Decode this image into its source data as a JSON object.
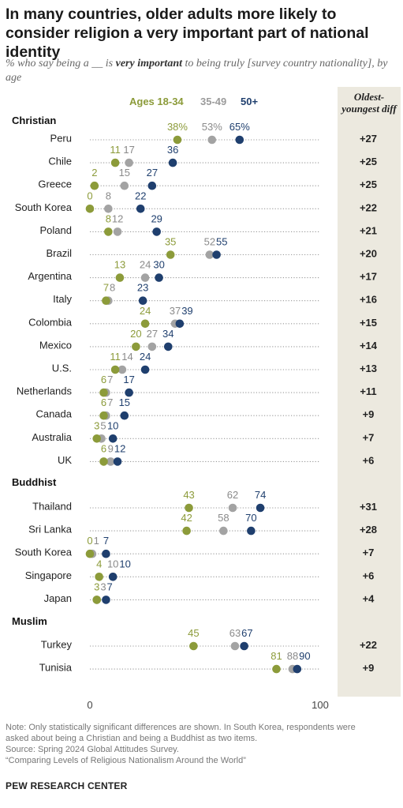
{
  "title": "In many countries, older adults more likely to consider religion a very important part of national identity",
  "subtitle_pre": "% who say being a __ is ",
  "subtitle_bold": "very important",
  "subtitle_post": " to being truly [survey country nationality], by age",
  "diff_header": "Oldest-youngest diff",
  "legend": [
    {
      "label": "Ages 18-34",
      "color": "#8c9b3a"
    },
    {
      "label": "35-49",
      "color": "#9b9b9b"
    },
    {
      "label": "50+",
      "color": "#1f3f6e"
    }
  ],
  "colors": {
    "young": "#8c9b3a",
    "mid": "#a3a3a3",
    "old": "#1f3f6e",
    "mid_text": "#8a8a8a",
    "band": "#ece9df"
  },
  "chart_data": {
    "type": "scatter",
    "xlim": [
      0,
      100
    ],
    "xticks": [
      "0",
      "100"
    ],
    "series": [
      {
        "name": "Ages 18-34"
      },
      {
        "name": "35-49"
      },
      {
        "name": "50+"
      }
    ],
    "groups": [
      {
        "name": "Christian",
        "rows": [
          {
            "label": "Peru",
            "values": [
              38,
              53,
              65
            ],
            "texts": [
              "38%",
              "53%",
              "65%"
            ],
            "diff": "+27"
          },
          {
            "label": "Chile",
            "values": [
              11,
              17,
              36
            ],
            "texts": [
              "11",
              "17",
              "36"
            ],
            "diff": "+25"
          },
          {
            "label": "Greece",
            "values": [
              2,
              15,
              27
            ],
            "texts": [
              "2",
              "15",
              "27"
            ],
            "diff": "+25"
          },
          {
            "label": "South Korea",
            "values": [
              0,
              8,
              22
            ],
            "texts": [
              "0",
              "8",
              "22"
            ],
            "diff": "+22"
          },
          {
            "label": "Poland",
            "values": [
              8,
              12,
              29
            ],
            "texts": [
              "8",
              "12",
              "29"
            ],
            "diff": "+21"
          },
          {
            "label": "Brazil",
            "values": [
              35,
              52,
              55
            ],
            "texts": [
              "35",
              "52",
              "55"
            ],
            "diff": "+20"
          },
          {
            "label": "Argentina",
            "values": [
              13,
              24,
              30
            ],
            "texts": [
              "13",
              "24",
              "30"
            ],
            "diff": "+17"
          },
          {
            "label": "Italy",
            "values": [
              7,
              8,
              23
            ],
            "texts": [
              "7",
              "8",
              "23"
            ],
            "diff": "+16"
          },
          {
            "label": "Colombia",
            "values": [
              24,
              37,
              39
            ],
            "texts": [
              "24",
              "37",
              "39"
            ],
            "diff": "+15"
          },
          {
            "label": "Mexico",
            "values": [
              20,
              27,
              34
            ],
            "texts": [
              "20",
              "27",
              "34"
            ],
            "diff": "+14"
          },
          {
            "label": "U.S.",
            "values": [
              11,
              14,
              24
            ],
            "texts": [
              "11",
              "14",
              "24"
            ],
            "diff": "+13"
          },
          {
            "label": "Netherlands",
            "values": [
              6,
              7,
              17
            ],
            "texts": [
              "6",
              "7",
              "17"
            ],
            "diff": "+11"
          },
          {
            "label": "Canada",
            "values": [
              6,
              7,
              15
            ],
            "texts": [
              "6",
              "7",
              "15"
            ],
            "diff": "+9"
          },
          {
            "label": "Australia",
            "values": [
              3,
              5,
              10
            ],
            "texts": [
              "3",
              "5",
              "10"
            ],
            "diff": "+7"
          },
          {
            "label": "UK",
            "values": [
              6,
              9,
              12
            ],
            "texts": [
              "6",
              "9",
              "12"
            ],
            "diff": "+6"
          }
        ]
      },
      {
        "name": "Buddhist",
        "rows": [
          {
            "label": "Thailand",
            "values": [
              43,
              62,
              74
            ],
            "texts": [
              "43",
              "62",
              "74"
            ],
            "diff": "+31"
          },
          {
            "label": "Sri Lanka",
            "values": [
              42,
              58,
              70
            ],
            "texts": [
              "42",
              "58",
              "70"
            ],
            "diff": "+28"
          },
          {
            "label": "South Korea",
            "values": [
              0,
              1,
              7
            ],
            "texts": [
              "0",
              "1",
              "7"
            ],
            "diff": "+7"
          },
          {
            "label": "Singapore",
            "values": [
              4,
              10,
              10
            ],
            "texts": [
              "4",
              "10",
              "10"
            ],
            "diff": "+6"
          },
          {
            "label": "Japan",
            "values": [
              3,
              3,
              7
            ],
            "texts": [
              "3",
              "3",
              "7"
            ],
            "diff": "+4"
          }
        ]
      },
      {
        "name": "Muslim",
        "rows": [
          {
            "label": "Turkey",
            "values": [
              45,
              63,
              67
            ],
            "texts": [
              "45",
              "63",
              "67"
            ],
            "diff": "+22"
          },
          {
            "label": "Tunisia",
            "values": [
              81,
              88,
              90
            ],
            "texts": [
              "81",
              "88",
              "90"
            ],
            "diff": "+9"
          }
        ]
      }
    ]
  },
  "notes": [
    "Note: Only statistically significant differences are shown. In South Korea, respondents were",
    "asked about being a Christian and being a Buddhist as two items.",
    "Source: Spring 2024 Global Attitudes Survey.",
    "“Comparing Levels of Religious Nationalism Around the World”"
  ],
  "brand": "PEW RESEARCH CENTER"
}
